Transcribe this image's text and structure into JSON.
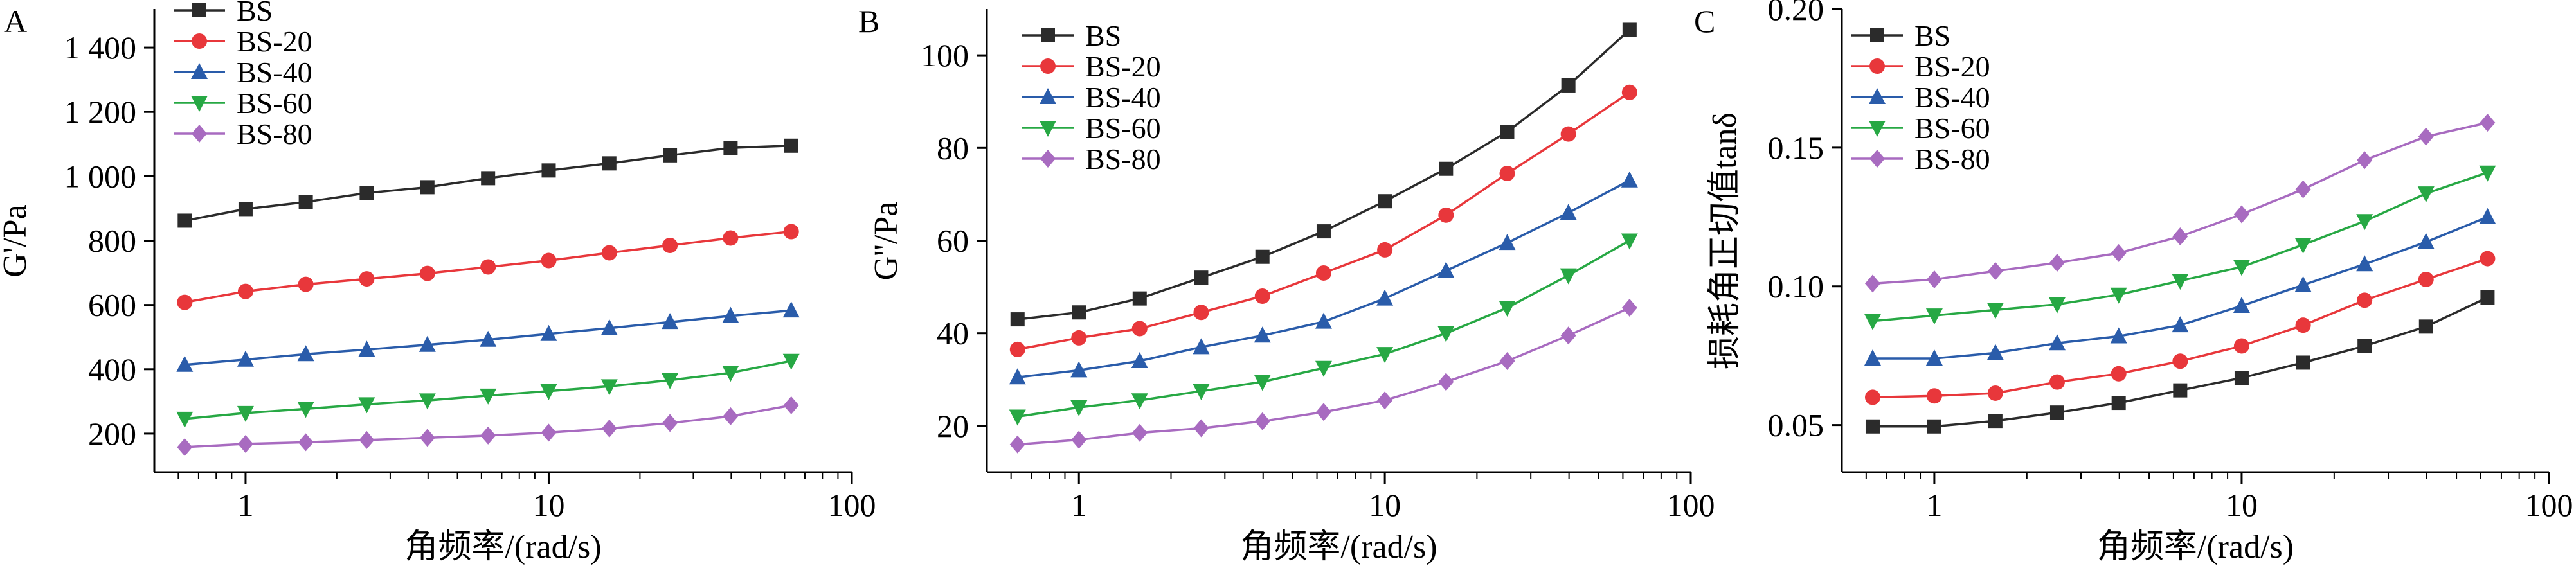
{
  "chart_data": [
    {
      "panel": "A",
      "type": "line",
      "title": "",
      "xlabel": "角频率/(rad/s)",
      "ylabel": "G'/Pa",
      "xscale": "log",
      "xlim": [
        0.5,
        100
      ],
      "ylim": [
        80,
        1520
      ],
      "xticks": [
        1,
        10,
        100
      ],
      "xtick_labels": [
        "1",
        "10",
        "100"
      ],
      "yticks": [
        200,
        400,
        600,
        800,
        1000,
        1200,
        1400
      ],
      "ytick_labels": [
        "200",
        "400",
        "600",
        "800",
        "1 000",
        "1 200",
        "1 400"
      ],
      "x": [
        0.63,
        1,
        1.58,
        2.51,
        3.98,
        6.31,
        10,
        15.85,
        25.12,
        39.81,
        63.1
      ],
      "legend": "top-left",
      "grid": false,
      "series": [
        {
          "name": "BS",
          "color": "#2b2b2b",
          "marker": "square",
          "values": [
            862,
            898,
            920,
            948,
            966,
            994,
            1018,
            1040,
            1065,
            1088,
            1095
          ]
        },
        {
          "name": "BS-20",
          "color": "#e8373b",
          "marker": "circle",
          "values": [
            608,
            642,
            664,
            681,
            698,
            718,
            738,
            762,
            785,
            808,
            828
          ]
        },
        {
          "name": "BS-40",
          "color": "#2a5caa",
          "marker": "triangle-up",
          "values": [
            414,
            430,
            447,
            461,
            476,
            492,
            510,
            528,
            547,
            566,
            583
          ]
        },
        {
          "name": "BS-60",
          "color": "#27a844",
          "marker": "triangle-down",
          "values": [
            246,
            264,
            277,
            291,
            303,
            318,
            332,
            347,
            366,
            389,
            426
          ]
        },
        {
          "name": "BS-80",
          "color": "#a86bc0",
          "marker": "diamond",
          "values": [
            158,
            168,
            173,
            180,
            187,
            194,
            203,
            216,
            233,
            254,
            288
          ]
        }
      ]
    },
    {
      "panel": "B",
      "type": "line",
      "title": "",
      "xlabel": "角频率/(rad/s)",
      "ylabel": "G''/Pa",
      "xscale": "log",
      "xlim": [
        0.5,
        100
      ],
      "ylim": [
        10,
        110
      ],
      "xticks": [
        1,
        10,
        100
      ],
      "xtick_labels": [
        "1",
        "10",
        "100"
      ],
      "yticks": [
        20,
        40,
        60,
        80,
        100
      ],
      "ytick_labels": [
        "20",
        "40",
        "60",
        "80",
        "100"
      ],
      "x": [
        0.63,
        1,
        1.58,
        2.51,
        3.98,
        6.31,
        10,
        15.85,
        25.12,
        39.81,
        63.1
      ],
      "legend": "top-left",
      "grid": false,
      "series": [
        {
          "name": "BS",
          "color": "#2b2b2b",
          "marker": "square",
          "values": [
            43,
            44.5,
            47.5,
            52,
            56.5,
            62,
            68.5,
            75.5,
            83.5,
            93.5,
            105.5
          ]
        },
        {
          "name": "BS-20",
          "color": "#e8373b",
          "marker": "circle",
          "values": [
            36.5,
            39,
            41,
            44.5,
            48,
            53,
            58,
            65.5,
            74.5,
            83,
            92
          ]
        },
        {
          "name": "BS-40",
          "color": "#2a5caa",
          "marker": "triangle-up",
          "values": [
            30.5,
            32,
            34,
            37,
            39.5,
            42.5,
            47.5,
            53.5,
            59.5,
            66,
            73
          ]
        },
        {
          "name": "BS-60",
          "color": "#27a844",
          "marker": "triangle-down",
          "values": [
            22,
            24,
            25.5,
            27.5,
            29.5,
            32.5,
            35.5,
            40,
            45.5,
            52.5,
            60
          ]
        },
        {
          "name": "BS-80",
          "color": "#a86bc0",
          "marker": "diamond",
          "values": [
            16,
            17,
            18.5,
            19.5,
            21,
            23,
            25.5,
            29.5,
            34,
            39.5,
            45.5
          ]
        }
      ]
    },
    {
      "panel": "C",
      "type": "line",
      "title": "",
      "xlabel": "角频率/(rad/s)",
      "ylabel": "损耗角正切值tanδ",
      "xscale": "log",
      "xlim": [
        0.5,
        100
      ],
      "ylim": [
        0.033,
        0.2
      ],
      "xticks": [
        1,
        10,
        100
      ],
      "xtick_labels": [
        "1",
        "10",
        "100"
      ],
      "yticks": [
        0.05,
        0.1,
        0.15,
        0.2
      ],
      "ytick_labels": [
        "0.05",
        "0.10",
        "0.15",
        "0.20"
      ],
      "x": [
        0.63,
        1,
        1.58,
        2.51,
        3.98,
        6.31,
        10,
        15.85,
        25.12,
        39.81,
        63.1
      ],
      "legend": "top-left",
      "grid": false,
      "series": [
        {
          "name": "BS",
          "color": "#2b2b2b",
          "marker": "square",
          "values": [
            0.0495,
            0.0495,
            0.0515,
            0.0545,
            0.058,
            0.0625,
            0.067,
            0.0725,
            0.0785,
            0.0855,
            0.096
          ]
        },
        {
          "name": "BS-20",
          "color": "#e8373b",
          "marker": "circle",
          "values": [
            0.06,
            0.0605,
            0.0615,
            0.0655,
            0.0685,
            0.073,
            0.0785,
            0.086,
            0.095,
            0.1025,
            0.11
          ]
        },
        {
          "name": "BS-40",
          "color": "#2a5caa",
          "marker": "triangle-up",
          "values": [
            0.074,
            0.074,
            0.076,
            0.0795,
            0.082,
            0.086,
            0.093,
            0.1005,
            0.108,
            0.116,
            0.125
          ]
        },
        {
          "name": "BS-60",
          "color": "#27a844",
          "marker": "triangle-down",
          "values": [
            0.0875,
            0.0895,
            0.0915,
            0.0935,
            0.097,
            0.102,
            0.107,
            0.115,
            0.1235,
            0.1335,
            0.141
          ]
        },
        {
          "name": "BS-80",
          "color": "#a86bc0",
          "marker": "diamond",
          "values": [
            0.101,
            0.1025,
            0.1055,
            0.1085,
            0.112,
            0.118,
            0.126,
            0.135,
            0.1455,
            0.154,
            0.159
          ]
        }
      ]
    }
  ]
}
